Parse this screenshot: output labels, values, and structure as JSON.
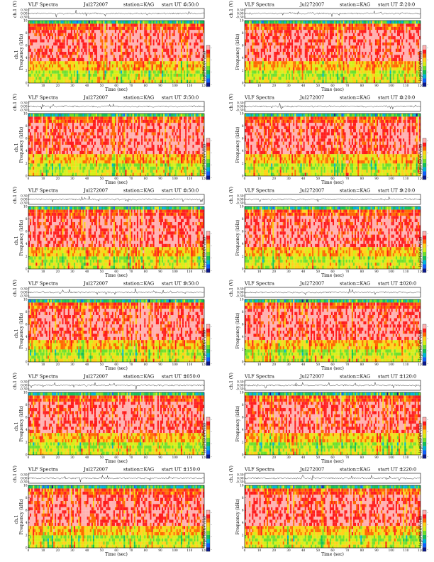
{
  "chart_data": {
    "type": "heatmap",
    "layout": {
      "rows": 6,
      "columns": 2
    },
    "common": {
      "header_title": "VLF Spectra",
      "header_date": "Jul272007",
      "header_station": "station=KAG",
      "header_start": "start UT =",
      "top_ylabel": "ch.1 (V)",
      "top_yticks": [
        "0.30",
        "0.00",
        "-0.30"
      ],
      "ylabel_left_panel": "ch.1\nFrequency (kHz)",
      "ylabel_right_panel": "Frequency (kHz)",
      "xlabel": "Time (sec)",
      "xlim": [
        0,
        120
      ],
      "xticks": [
        0,
        10,
        20,
        30,
        40,
        50,
        60,
        70,
        80,
        90,
        100,
        110,
        120
      ],
      "ylim": [
        0,
        10
      ],
      "yticks": [
        0,
        2,
        4,
        6,
        8,
        10
      ],
      "colorbar_label": "log(PSD)(V²/Hz)",
      "colorbar_ticks": [
        "-",
        "-",
        "-",
        "-"
      ],
      "colormap": [
        "#0d1a8c",
        "#1060ff",
        "#00b4d8",
        "#16c05a",
        "#6ee02c",
        "#d6ef18",
        "#ffd21a",
        "#ff6a00",
        "#ff1c1c",
        "#ffb0b0"
      ]
    },
    "panels": [
      {
        "start_time": "6:50:0"
      },
      {
        "start_time": "7:20:0"
      },
      {
        "start_time": "7:50:0"
      },
      {
        "start_time": "8:20:0"
      },
      {
        "start_time": "8:50:0"
      },
      {
        "start_time": "9:20:0"
      },
      {
        "start_time": "9:50:0"
      },
      {
        "start_time": "1020:0"
      },
      {
        "start_time": "1050:0"
      },
      {
        "start_time": "1120:0"
      },
      {
        "start_time": "1150:0"
      },
      {
        "start_time": "1220:0"
      }
    ]
  }
}
